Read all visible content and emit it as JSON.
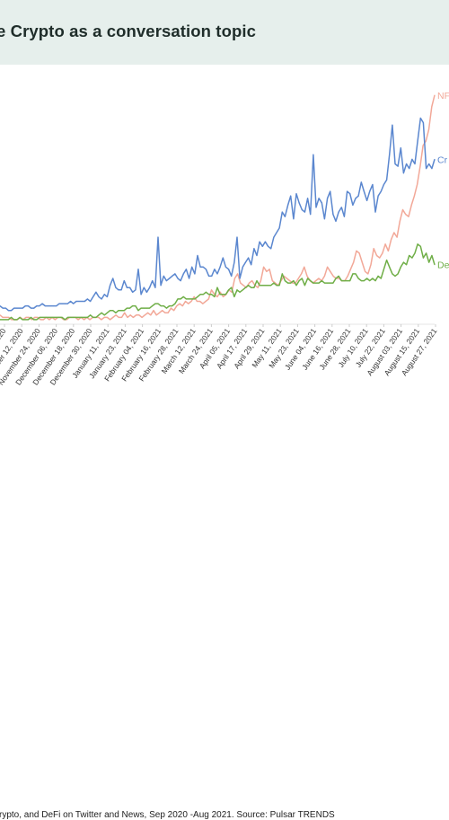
{
  "header": {
    "title": "e Crypto as a conversation topic"
  },
  "footer": {
    "caption": "rypto, and DeFi on Twitter and News, Sep 2020 -Aug 2021. Source: Pulsar TRENDS"
  },
  "colors": {
    "header_bg": "#e6efec",
    "nft": "#f2a898",
    "crypto": "#5b87cf",
    "defi": "#6fae47"
  },
  "chart_data": {
    "type": "line",
    "title": "e Crypto as a conversation topic",
    "xlabel": "",
    "ylabel": "",
    "ylim": [
      0,
      100
    ],
    "grid": false,
    "legend": "inline-right",
    "x_tick_labels": [
      "…0, 2020",
      "…ber 12, 2020",
      "November 24, 2020",
      "December 06, 2020",
      "December 18, 2020",
      "December 30, 2020",
      "January 11, 2021",
      "January 23, 2021",
      "February 04, 2021",
      "February 16, 2021",
      "February 28, 2021",
      "March 12, 2021",
      "March 24, 2021",
      "April 05, 2021",
      "April 17, 2021",
      "April 29, 2021",
      "May 11, 2021",
      "May 23, 2021",
      "June 04, 2021",
      "June 16, 2021",
      "June 28, 2021",
      "July 10, 2021",
      "July 22, 2021",
      "August 03, 2021",
      "August 15, 2021",
      "August 27, 2021"
    ],
    "series": [
      {
        "name": "NF",
        "color": "#f2a898",
        "values": [
          4,
          3,
          3,
          3,
          2,
          2,
          2,
          3,
          2,
          3,
          3,
          2,
          3,
          3,
          2,
          2,
          3,
          2,
          3,
          2,
          3,
          3,
          2,
          2,
          3,
          3,
          3,
          2,
          3,
          2,
          3,
          2,
          3,
          3,
          3,
          2,
          3,
          3,
          2,
          3,
          4,
          3,
          3,
          5,
          3,
          4,
          3,
          4,
          4,
          3,
          4,
          5,
          4,
          6,
          4,
          5,
          6,
          5,
          5,
          7,
          6,
          8,
          9,
          8,
          10,
          9,
          10,
          12,
          10,
          10,
          9,
          10,
          11,
          15,
          13,
          12,
          14,
          12,
          13,
          15,
          14,
          20,
          22,
          18,
          17,
          16,
          18,
          19,
          17,
          16,
          19,
          25,
          23,
          24,
          19,
          18,
          17,
          19,
          21,
          20,
          19,
          18,
          18,
          20,
          22,
          25,
          21,
          19,
          18,
          19,
          20,
          19,
          21,
          25,
          23,
          21,
          20,
          20,
          19,
          19,
          21,
          24,
          27,
          32,
          31,
          27,
          23,
          22,
          26,
          33,
          30,
          29,
          31,
          35,
          32,
          37,
          40,
          38,
          45,
          50,
          48,
          47,
          52,
          56,
          61,
          69,
          78,
          80,
          85,
          95,
          100
        ]
      },
      {
        "name": "Cr",
        "color": "#5b87cf",
        "values": [
          8,
          7,
          7,
          6,
          6,
          7,
          7,
          7,
          7,
          8,
          8,
          7,
          7,
          8,
          8,
          9,
          8,
          8,
          8,
          8,
          8,
          9,
          9,
          9,
          9,
          10,
          9,
          10,
          10,
          10,
          10,
          11,
          10,
          12,
          14,
          12,
          11,
          13,
          12,
          17,
          20,
          16,
          15,
          15,
          19,
          16,
          16,
          14,
          15,
          24,
          13,
          16,
          14,
          16,
          19,
          16,
          38,
          17,
          21,
          19,
          20,
          21,
          22,
          20,
          19,
          22,
          24,
          20,
          25,
          22,
          30,
          25,
          25,
          24,
          21,
          21,
          24,
          22,
          25,
          29,
          25,
          24,
          21,
          27,
          38,
          20,
          25,
          27,
          29,
          26,
          33,
          30,
          36,
          34,
          36,
          34,
          33,
          38,
          40,
          42,
          49,
          47,
          52,
          56,
          46,
          57,
          53,
          50,
          49,
          55,
          48,
          74,
          51,
          55,
          53,
          46,
          55,
          58,
          48,
          45,
          49,
          51,
          47,
          58,
          57,
          52,
          55,
          56,
          62,
          58,
          54,
          58,
          61,
          49,
          56,
          58,
          61,
          63,
          74,
          87,
          70,
          69,
          77,
          66,
          70,
          68,
          72,
          70,
          80,
          90,
          88,
          68,
          70,
          68,
          72
        ]
      },
      {
        "name": "De",
        "color": "#6fae47",
        "values": [
          2,
          2,
          2,
          2,
          3,
          2,
          2,
          3,
          2,
          2,
          2,
          3,
          2,
          2,
          3,
          3,
          3,
          3,
          3,
          3,
          3,
          3,
          3,
          2,
          3,
          3,
          3,
          3,
          3,
          3,
          3,
          3,
          4,
          3,
          3,
          4,
          5,
          4,
          5,
          6,
          6,
          5,
          6,
          6,
          6,
          7,
          7,
          8,
          8,
          6,
          7,
          7,
          7,
          7,
          8,
          9,
          9,
          8,
          8,
          7,
          8,
          8,
          9,
          11,
          11,
          12,
          11,
          11,
          11,
          11,
          12,
          13,
          13,
          14,
          13,
          13,
          12,
          16,
          13,
          13,
          13,
          15,
          16,
          12,
          15,
          14,
          15,
          16,
          17,
          16,
          16,
          19,
          17,
          17,
          17,
          17,
          17,
          18,
          17,
          17,
          22,
          19,
          18,
          18,
          19,
          17,
          19,
          20,
          17,
          20,
          19,
          18,
          18,
          18,
          19,
          18,
          18,
          18,
          18,
          20,
          21,
          19,
          19,
          19,
          19,
          22,
          22,
          20,
          19,
          19,
          20,
          19,
          20,
          19,
          21,
          20,
          24,
          28,
          25,
          22,
          21,
          22,
          25,
          27,
          26,
          30,
          29,
          31,
          35,
          34,
          29,
          31,
          27,
          30,
          26
        ]
      }
    ]
  }
}
